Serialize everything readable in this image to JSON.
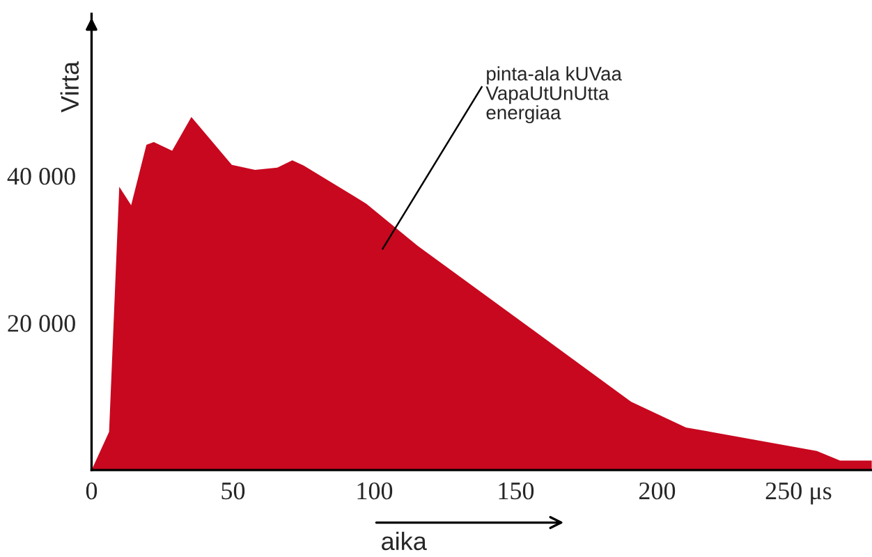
{
  "chart_data": {
    "type": "area",
    "xlabel": "aika",
    "ylabel": "Virta",
    "x": [
      0,
      6.2,
      9.8,
      14,
      19.4,
      22,
      28.5,
      35.3,
      49.6,
      57.8,
      65.7,
      71,
      75,
      97.2,
      115.3,
      190.8,
      210.2,
      256.5,
      264.7,
      275.9
    ],
    "series": [
      {
        "color": "#c8081f",
        "values": [
          0,
          5200,
          38500,
          36000,
          44200,
          44600,
          43400,
          48000,
          41500,
          40800,
          41100,
          42100,
          41400,
          36200,
          30500,
          9300,
          5800,
          2600,
          1300,
          1300
        ]
      }
    ],
    "xlim": [
      0,
      276
    ],
    "ylim": [
      0,
      62000
    ],
    "xticks": [
      0,
      50,
      100,
      150,
      200,
      {
        "value": 250,
        "label": "250 μs"
      }
    ],
    "yticks": [
      {
        "value": 0,
        "label": null
      },
      {
        "value": 20000,
        "label": "20 000"
      },
      {
        "value": 40000,
        "label": "40 000"
      }
    ],
    "annotations": [
      "pinta-ala kUVaa\nVapaUtUnUtta\nenergiaa"
    ],
    "grid": false,
    "legend": false
  }
}
